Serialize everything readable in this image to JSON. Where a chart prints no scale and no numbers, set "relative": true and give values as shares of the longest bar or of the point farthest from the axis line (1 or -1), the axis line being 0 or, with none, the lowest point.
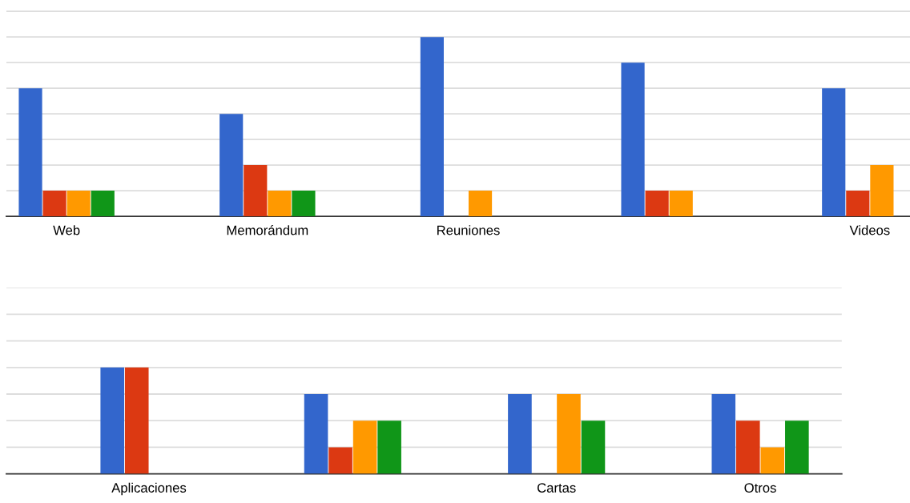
{
  "chart_data": [
    {
      "type": "bar",
      "relative": true,
      "grid": "y",
      "categories": [
        "Web",
        "Memorándum",
        "Reuniones",
        null,
        "Videos"
      ],
      "series": [
        {
          "color": "#3366cc",
          "values": [
            0.714,
            0.571,
            1,
            0.857,
            0.714
          ]
        },
        {
          "color": "#dc3912",
          "values": [
            0.143,
            0.286,
            0,
            0.143,
            0.143
          ]
        },
        {
          "color": "#ff9900",
          "values": [
            0.143,
            0.143,
            0.143,
            0.143,
            0.286
          ]
        },
        {
          "color": "#109618",
          "values": [
            0.143,
            0.143,
            0,
            0,
            0
          ]
        }
      ]
    },
    {
      "type": "bar",
      "relative": true,
      "grid": "y",
      "categories": [
        "Aplicaciones",
        null,
        "Cartas",
        "Otros"
      ],
      "series": [
        {
          "color": "#3366cc",
          "values": [
            1,
            0.75,
            0.75,
            0.75
          ]
        },
        {
          "color": "#dc3912",
          "values": [
            1,
            0.25,
            0,
            0.5
          ]
        },
        {
          "color": "#ff9900",
          "values": [
            0,
            0.5,
            0.75,
            0.25
          ]
        },
        {
          "color": "#109618",
          "values": [
            0,
            0.5,
            0.5,
            0.5
          ]
        }
      ]
    }
  ]
}
